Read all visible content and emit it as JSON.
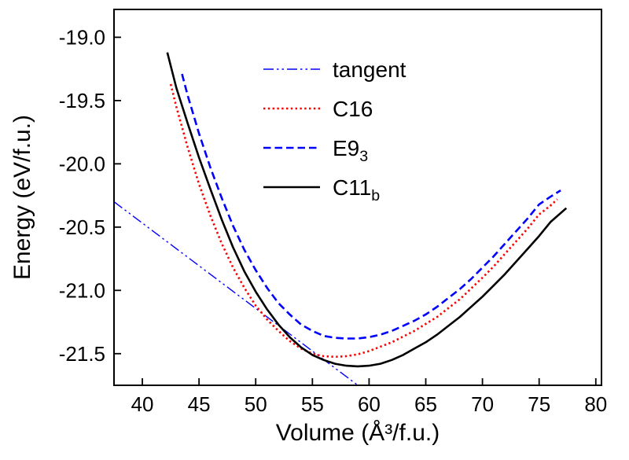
{
  "figure": {
    "background": "#ffffff"
  },
  "chart_data": {
    "type": "line",
    "title": "",
    "xlabel": "Volume (Å³/f.u.)",
    "ylabel": "Energy (eV/f.u.)",
    "xlim": [
      37.5,
      80.5
    ],
    "ylim": [
      -21.75,
      -18.78
    ],
    "xticks": [
      40,
      45,
      50,
      55,
      60,
      65,
      70,
      75,
      80
    ],
    "xtick_labels": [
      "40",
      "45",
      "50",
      "55",
      "60",
      "65",
      "70",
      "75",
      "80"
    ],
    "yticks": [
      -19.0,
      -19.5,
      -20.0,
      -20.5,
      -21.0,
      -21.5
    ],
    "ytick_labels": [
      "-19.0",
      "-19.5",
      "-20.0",
      "-20.5",
      "-21.0",
      "-21.5"
    ],
    "grid": false,
    "axis_color": "#000000",
    "legend_position": "top-center-inside",
    "series": [
      {
        "name": "tangent",
        "label_main": "tangent",
        "label_sub": "",
        "color": "#0000ff",
        "width": 1.4,
        "dash": "13 4 2.5 4 2.5 4",
        "points": [
          [
            37.5,
            -20.3
          ],
          [
            59.6,
            -21.79
          ]
        ]
      },
      {
        "name": "C16",
        "label_main": "C16",
        "label_sub": "",
        "color": "#ff0000",
        "width": 2.6,
        "dash": "2.4 3.4",
        "points": [
          [
            42.5,
            -19.37
          ],
          [
            43,
            -19.55
          ],
          [
            44,
            -19.87
          ],
          [
            45,
            -20.16
          ],
          [
            46,
            -20.41
          ],
          [
            47,
            -20.63
          ],
          [
            48,
            -20.82
          ],
          [
            49,
            -20.98
          ],
          [
            50,
            -21.12
          ],
          [
            51,
            -21.23
          ],
          [
            52,
            -21.32
          ],
          [
            53,
            -21.4
          ],
          [
            54,
            -21.46
          ],
          [
            55,
            -21.5
          ],
          [
            56,
            -21.52
          ],
          [
            57,
            -21.525
          ],
          [
            58,
            -21.52
          ],
          [
            59,
            -21.505
          ],
          [
            60,
            -21.48
          ],
          [
            61,
            -21.445
          ],
          [
            62,
            -21.41
          ],
          [
            63,
            -21.365
          ],
          [
            64,
            -21.32
          ],
          [
            65,
            -21.265
          ],
          [
            66,
            -21.21
          ],
          [
            67,
            -21.14
          ],
          [
            68,
            -21.07
          ],
          [
            69,
            -20.985
          ],
          [
            70,
            -20.9
          ],
          [
            71,
            -20.81
          ],
          [
            72,
            -20.71
          ],
          [
            73,
            -20.61
          ],
          [
            74,
            -20.51
          ],
          [
            75,
            -20.4
          ],
          [
            76,
            -20.33
          ],
          [
            76.6,
            -20.28
          ]
        ]
      },
      {
        "name": "E9_3",
        "label_main": "E9",
        "label_sub": "3",
        "color": "#0000ff",
        "width": 2.6,
        "dash": "9.5 5",
        "points": [
          [
            43.5,
            -19.29
          ],
          [
            44,
            -19.46
          ],
          [
            45,
            -19.76
          ],
          [
            46,
            -20.03
          ],
          [
            47,
            -20.27
          ],
          [
            48,
            -20.49
          ],
          [
            49,
            -20.68
          ],
          [
            50,
            -20.84
          ],
          [
            51,
            -20.98
          ],
          [
            52,
            -21.1
          ],
          [
            53,
            -21.19
          ],
          [
            54,
            -21.27
          ],
          [
            55,
            -21.32
          ],
          [
            56,
            -21.36
          ],
          [
            57,
            -21.375
          ],
          [
            58,
            -21.38
          ],
          [
            59,
            -21.38
          ],
          [
            60,
            -21.37
          ],
          [
            61,
            -21.35
          ],
          [
            62,
            -21.32
          ],
          [
            63,
            -21.28
          ],
          [
            64,
            -21.24
          ],
          [
            65,
            -21.19
          ],
          [
            66,
            -21.13
          ],
          [
            67,
            -21.06
          ],
          [
            68,
            -20.99
          ],
          [
            69,
            -20.91
          ],
          [
            70,
            -20.82
          ],
          [
            71,
            -20.73
          ],
          [
            72,
            -20.63
          ],
          [
            73,
            -20.53
          ],
          [
            74,
            -20.43
          ],
          [
            75,
            -20.32
          ],
          [
            76,
            -20.26
          ],
          [
            76.9,
            -20.21
          ]
        ]
      },
      {
        "name": "C11_b",
        "label_main": "C11",
        "label_sub": "b",
        "color": "#000000",
        "width": 2.6,
        "dash": "",
        "points": [
          [
            42.2,
            -19.12
          ],
          [
            43,
            -19.4
          ],
          [
            44,
            -19.68
          ],
          [
            45,
            -19.95
          ],
          [
            46,
            -20.2
          ],
          [
            47,
            -20.44
          ],
          [
            48,
            -20.66
          ],
          [
            49,
            -20.85
          ],
          [
            50,
            -21.01
          ],
          [
            51,
            -21.15
          ],
          [
            52,
            -21.27
          ],
          [
            53,
            -21.37
          ],
          [
            54,
            -21.45
          ],
          [
            55,
            -21.51
          ],
          [
            56,
            -21.55
          ],
          [
            57,
            -21.58
          ],
          [
            58,
            -21.595
          ],
          [
            59,
            -21.6
          ],
          [
            60,
            -21.595
          ],
          [
            61,
            -21.58
          ],
          [
            62,
            -21.55
          ],
          [
            63,
            -21.51
          ],
          [
            64,
            -21.46
          ],
          [
            65,
            -21.41
          ],
          [
            66,
            -21.35
          ],
          [
            67,
            -21.28
          ],
          [
            68,
            -21.21
          ],
          [
            69,
            -21.13
          ],
          [
            70,
            -21.05
          ],
          [
            71,
            -20.96
          ],
          [
            72,
            -20.87
          ],
          [
            73,
            -20.77
          ],
          [
            74,
            -20.67
          ],
          [
            75,
            -20.57
          ],
          [
            76,
            -20.46
          ],
          [
            77.4,
            -20.35
          ]
        ]
      }
    ]
  }
}
